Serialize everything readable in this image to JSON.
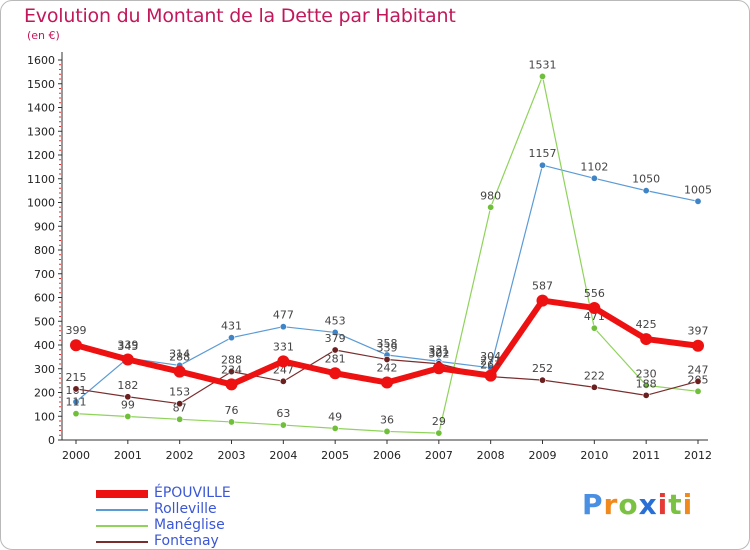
{
  "header": {
    "title": "Evolution du Montant de la Dette par Habitant",
    "subtitle": "(en €)"
  },
  "logo": {
    "text": "Proxiti",
    "colors": [
      "#4a90e2",
      "#f08a1c",
      "#7cc242",
      "#2a6fd6",
      "#e53935",
      "#7cc242",
      "#f08a1c"
    ]
  },
  "chart_data": {
    "type": "line",
    "x": [
      2000,
      2001,
      2002,
      2003,
      2004,
      2005,
      2006,
      2007,
      2008,
      2009,
      2010,
      2011,
      2012
    ],
    "ylim": [
      0,
      1600
    ],
    "yticks": [
      0,
      100,
      200,
      300,
      400,
      500,
      600,
      700,
      800,
      900,
      1000,
      1100,
      1200,
      1300,
      1400,
      1500,
      1600
    ],
    "grid": false,
    "legend_position": "bottom-left",
    "series": [
      {
        "name": "Rolleville",
        "color": "#5b9bd5",
        "marker": "#3f84c7",
        "width": 1.2,
        "values": [
          161,
          345,
          314,
          431,
          477,
          453,
          358,
          331,
          304,
          1157,
          1102,
          1050,
          1005
        ]
      },
      {
        "name": "Manéglise",
        "color": "#8fd35b",
        "marker": "#6fbf3a",
        "width": 1.2,
        "values": [
          111,
          99,
          87,
          76,
          63,
          49,
          36,
          29,
          980,
          1531,
          471,
          230,
          205
        ]
      },
      {
        "name": "Fontenay",
        "color": "#7b2d2d",
        "marker": "#6b1f1f",
        "width": 1.2,
        "values": [
          215,
          182,
          153,
          288,
          247,
          379,
          339,
          321,
          267,
          252,
          222,
          188,
          247
        ]
      },
      {
        "name": "ÉPOUVILLE",
        "color": "#ee1111",
        "marker": "#ee1111",
        "width": 6,
        "values": [
          399,
          339,
          288,
          234,
          331,
          281,
          242,
          302,
          271,
          587,
          556,
          425,
          397
        ]
      }
    ]
  }
}
